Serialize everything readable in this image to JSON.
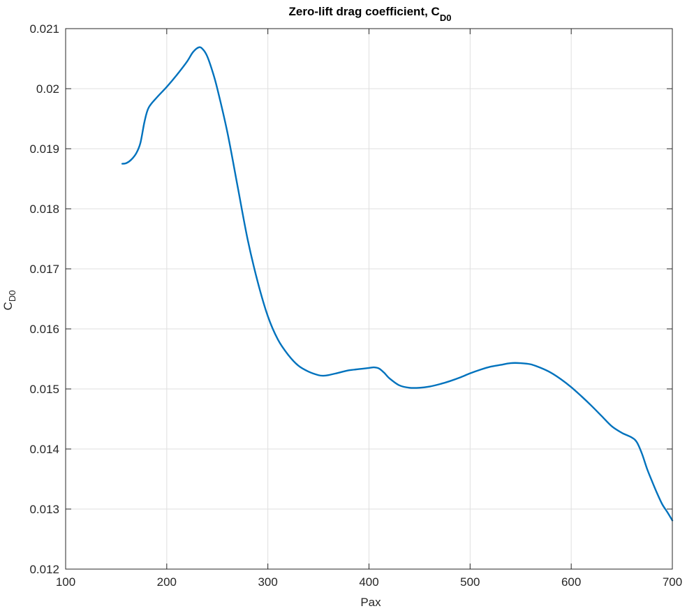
{
  "chart_data": {
    "type": "line",
    "title": "Zero-lift drag coefficient, C",
    "title_subscript": "D0",
    "xlabel": "Pax",
    "ylabel": "C",
    "ylabel_subscript": "D0",
    "xlim": [
      100,
      700
    ],
    "ylim": [
      0.012,
      0.021
    ],
    "xticks": [
      "100",
      "200",
      "300",
      "400",
      "500",
      "600",
      "700"
    ],
    "yticks": [
      "0.012",
      "0.013",
      "0.014",
      "0.015",
      "0.016",
      "0.017",
      "0.018",
      "0.019",
      "0.02",
      "0.021"
    ],
    "grid": true,
    "series_color": "#0072BD",
    "series": [
      {
        "x": [
          156,
          160,
          165,
          170,
          174,
          178,
          182,
          190,
          200,
          210,
          220,
          226,
          232,
          236,
          240,
          245,
          250,
          260,
          270,
          280,
          290,
          300,
          310,
          320,
          330,
          340,
          350,
          355,
          360,
          370,
          380,
          390,
          400,
          405,
          410,
          415,
          420,
          430,
          440,
          450,
          460,
          470,
          480,
          490,
          500,
          510,
          520,
          530,
          540,
          550,
          560,
          570,
          580,
          590,
          600,
          610,
          620,
          630,
          640,
          650,
          660,
          665,
          670,
          675,
          680,
          685,
          690,
          695,
          700
        ],
        "y": [
          0.01875,
          0.01876,
          0.01882,
          0.01893,
          0.0191,
          0.01945,
          0.01968,
          0.01985,
          0.02003,
          0.02023,
          0.02045,
          0.02061,
          0.02069,
          0.02065,
          0.02054,
          0.0203,
          0.02,
          0.01927,
          0.01838,
          0.01749,
          0.01678,
          0.01621,
          0.01582,
          0.01557,
          0.01539,
          0.01529,
          0.01523,
          0.01522,
          0.01523,
          0.01527,
          0.01531,
          0.01533,
          0.01535,
          0.01536,
          0.01534,
          0.01527,
          0.01518,
          0.01506,
          0.01502,
          0.01502,
          0.01504,
          0.01508,
          0.01513,
          0.01519,
          0.01526,
          0.01532,
          0.01537,
          0.0154,
          0.01543,
          0.01543,
          0.01541,
          0.01535,
          0.01527,
          0.01516,
          0.01503,
          0.01488,
          0.01472,
          0.01455,
          0.01438,
          0.01427,
          0.01419,
          0.01411,
          0.01392,
          0.01367,
          0.01346,
          0.01326,
          0.01308,
          0.01295,
          0.01281
        ]
      }
    ]
  }
}
